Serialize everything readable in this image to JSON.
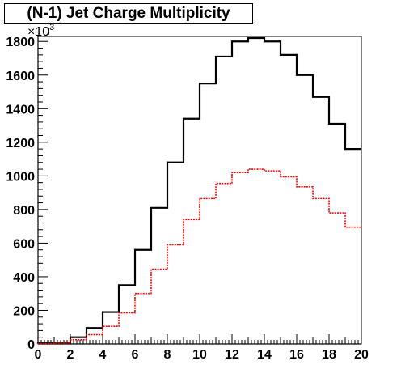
{
  "chart_data": {
    "type": "histogram",
    "title": "(N-1) Jet Charge Multiplicity",
    "xlabel": "",
    "ylabel": "",
    "ylim": [
      0,
      1830000
    ],
    "xlim": [
      0,
      20
    ],
    "y_tick_labels": [
      "0",
      "200",
      "400",
      "600",
      "800",
      "1000",
      "1200",
      "1400",
      "1600",
      "1800"
    ],
    "y_ticks": [
      0,
      200000,
      400000,
      600000,
      800000,
      1000000,
      1200000,
      1400000,
      1600000,
      1800000
    ],
    "y_multiplier_label": "×10",
    "y_multiplier_exponent": "3",
    "x_tick_labels": [
      "0",
      "2",
      "4",
      "6",
      "8",
      "10",
      "12",
      "14",
      "16",
      "18",
      "20"
    ],
    "x_ticks": [
      0,
      2,
      4,
      6,
      8,
      10,
      12,
      14,
      16,
      18,
      20
    ],
    "bin_edges": [
      0,
      1,
      2,
      3,
      4,
      5,
      6,
      7,
      8,
      9,
      10,
      11,
      12,
      13,
      14,
      15,
      16,
      17,
      18,
      19,
      20
    ],
    "grid": false,
    "legend": "none",
    "series": [
      {
        "color": "#000000",
        "line_style": "solid",
        "values": [
          5000,
          8000,
          40000,
          95000,
          190000,
          350000,
          560000,
          810000,
          1080000,
          1340000,
          1550000,
          1710000,
          1800000,
          1820000,
          1800000,
          1720000,
          1600000,
          1470000,
          1310000,
          1160000
        ]
      },
      {
        "color": "#ff0000",
        "line_style": "dotted",
        "values": [
          3000,
          5000,
          25000,
          55000,
          105000,
          185000,
          300000,
          445000,
          590000,
          740000,
          865000,
          955000,
          1020000,
          1040000,
          1030000,
          995000,
          935000,
          865000,
          780000,
          695000
        ]
      }
    ]
  }
}
